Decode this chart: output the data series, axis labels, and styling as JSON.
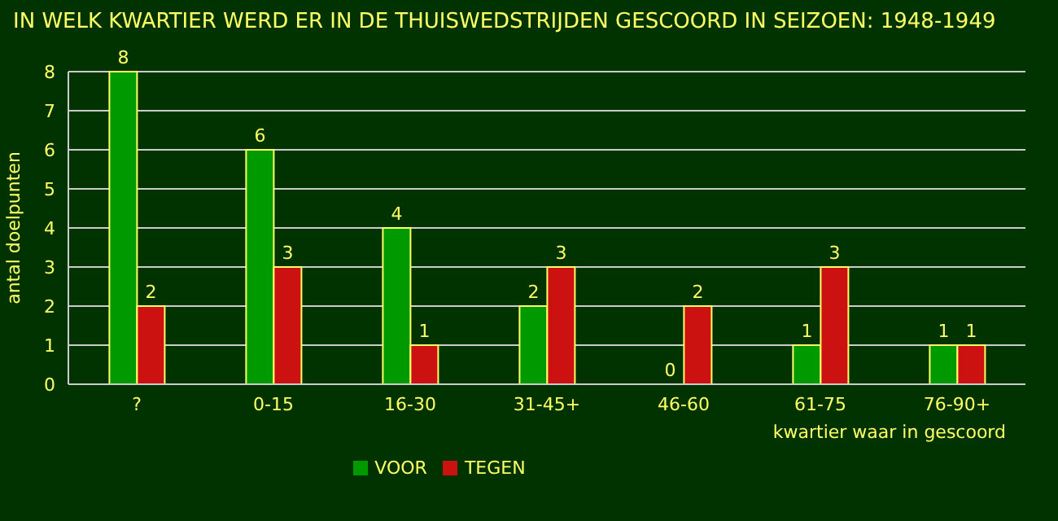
{
  "chart_data": {
    "type": "bar",
    "title": "IN WELK KWARTIER WERD ER IN DE THUISWEDSTRIJDEN GESCOORD IN SEIZOEN: 1948-1949",
    "xlabel": "kwartier waar in gescoord",
    "ylabel": "antal doelpunten",
    "categories": [
      "?",
      "0-15",
      "16-30",
      "31-45+",
      "46-60",
      "61-75",
      "76-90+"
    ],
    "series": [
      {
        "name": "VOOR",
        "color": "#009900",
        "values": [
          8,
          6,
          4,
          2,
          0,
          1,
          1
        ]
      },
      {
        "name": "TEGEN",
        "color": "#cc1111",
        "values": [
          2,
          3,
          1,
          3,
          2,
          3,
          1
        ]
      }
    ],
    "ylim": [
      0,
      8
    ],
    "yticks": [
      0,
      1,
      2,
      3,
      4,
      5,
      6,
      7,
      8
    ],
    "grid": "y",
    "legend": "bottom",
    "data_labels": true
  }
}
